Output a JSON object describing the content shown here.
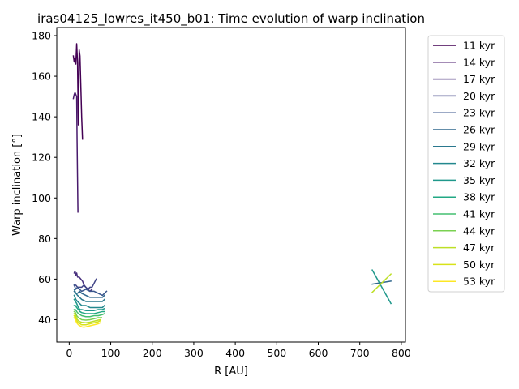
{
  "chart_data": {
    "type": "line",
    "title": "iras04125_lowres_it450_b01: Time evolution of warp inclination",
    "xlabel": "R [AU]",
    "ylabel": "Warp inclination [°]",
    "xlim": [
      -30,
      810
    ],
    "ylim": [
      29,
      184
    ],
    "xticks": [
      0,
      100,
      200,
      300,
      400,
      500,
      600,
      700,
      800
    ],
    "yticks": [
      40,
      60,
      80,
      100,
      120,
      140,
      160,
      180
    ],
    "grid": false,
    "legend_position": "outside-right",
    "series": [
      {
        "name": "11 kyr",
        "color": "#440154",
        "x": [
          10,
          12,
          14,
          16,
          18,
          20,
          22,
          24,
          26,
          28,
          30,
          32
        ],
        "y": [
          170,
          167,
          169,
          166,
          176,
          167,
          136,
          173,
          170,
          155,
          140,
          129
        ]
      },
      {
        "name": "14 kyr",
        "color": "#481a6c",
        "x": [
          10,
          12,
          14,
          16,
          18,
          19,
          20,
          21
        ],
        "y": [
          149,
          151,
          152,
          151,
          150,
          128,
          110,
          93
        ]
      },
      {
        "name": "17 kyr",
        "color": "#472f7d",
        "x": [
          12,
          14,
          16,
          18,
          20,
          24,
          28,
          32,
          36,
          40,
          45,
          50,
          55
        ],
        "y": [
          63,
          64,
          62,
          63,
          61,
          61,
          60,
          59,
          57,
          56,
          55,
          54,
          55
        ]
      },
      {
        "name": "20 kyr",
        "color": "#414487",
        "x": [
          12,
          16,
          20,
          25,
          30,
          35,
          40,
          45,
          50,
          55,
          60,
          65
        ],
        "y": [
          57,
          57,
          56,
          56,
          56,
          57,
          56,
          55,
          56,
          56,
          58,
          60
        ]
      },
      {
        "name": "23 kyr",
        "color": "#39568c",
        "x": [
          12,
          16,
          20,
          25,
          30,
          40,
          50,
          60,
          70,
          80,
          85,
          90
        ],
        "y": [
          57,
          55,
          56,
          55,
          54,
          55,
          54,
          54,
          53,
          52,
          53,
          54
        ]
      },
      {
        "name": "26 kyr",
        "color": "#31688e",
        "x": [
          12,
          16,
          20,
          25,
          30,
          40,
          50,
          60,
          70,
          80,
          85
        ],
        "y": [
          54,
          53,
          53,
          54,
          53,
          52,
          51,
          51,
          51,
          51,
          52
        ]
      },
      {
        "name": "29 kyr",
        "color": "#2a788e",
        "x": [
          12,
          16,
          20,
          25,
          30,
          40,
          50,
          60,
          70,
          80,
          85
        ],
        "y": [
          55,
          53,
          52,
          51,
          50,
          49,
          49,
          49,
          49,
          49,
          50
        ]
      },
      {
        "name": "32 kyr",
        "color": "#23888e",
        "x": [
          12,
          16,
          20,
          25,
          30,
          40,
          50,
          60,
          70,
          80,
          85
        ],
        "y": [
          52,
          50,
          49,
          48,
          47,
          47,
          46,
          46,
          46,
          46,
          47
        ]
      },
      {
        "name": "35 kyr",
        "color": "#1f988b",
        "x": [
          12,
          15,
          18,
          22,
          26,
          30,
          40,
          50,
          60,
          70,
          80,
          85
        ],
        "y": [
          50,
          49,
          48,
          46,
          45,
          45,
          44.5,
          44.5,
          44.5,
          45,
          45,
          45.5
        ]
      },
      {
        "name": "38 kyr",
        "color": "#22a884",
        "x": [
          12,
          15,
          18,
          22,
          26,
          30,
          40,
          50,
          60,
          70,
          80,
          85
        ],
        "y": [
          47,
          47,
          46,
          45,
          44,
          43.5,
          43,
          43,
          43,
          43.5,
          44,
          44
        ]
      },
      {
        "name": "41 kyr",
        "color": "#44bf70",
        "x": [
          12,
          15,
          18,
          22,
          26,
          30,
          40,
          50,
          60,
          70,
          80,
          85
        ],
        "y": [
          45,
          45,
          44,
          43,
          42.5,
          42,
          41.5,
          41.5,
          42,
          42,
          42.5,
          43
        ]
      },
      {
        "name": "44 kyr",
        "color": "#7ad151",
        "x": [
          12,
          15,
          18,
          22,
          26,
          30,
          40,
          50,
          60,
          70,
          78
        ],
        "y": [
          44,
          43.5,
          42,
          41,
          40.5,
          40,
          39.8,
          40,
          40.5,
          41,
          41
        ]
      },
      {
        "name": "47 kyr",
        "color": "#bddf26",
        "x": [
          12,
          15,
          18,
          22,
          26,
          30,
          40,
          50,
          60,
          70,
          75
        ],
        "y": [
          43,
          42.5,
          40.5,
          39.5,
          39,
          38.7,
          38.5,
          38.8,
          39.3,
          39.8,
          40
        ]
      },
      {
        "name": "50 kyr",
        "color": "#d8e219",
        "x": [
          12,
          15,
          18,
          22,
          26,
          30,
          40,
          50,
          60,
          70,
          75
        ],
        "y": [
          42,
          41,
          39.5,
          38.5,
          38,
          37.5,
          37.5,
          38,
          38.5,
          39,
          39.5
        ]
      },
      {
        "name": "53 kyr",
        "color": "#fde725",
        "x": [
          12,
          15,
          18,
          22,
          26,
          30,
          35,
          40,
          50,
          60,
          70,
          75
        ],
        "y": [
          41,
          40,
          38.5,
          37.5,
          37,
          36.5,
          36.3,
          36.5,
          37,
          37.5,
          38,
          38.5
        ]
      },
      {
        "name": "",
        "color": "#31688e",
        "x": [
          730,
          775
        ],
        "y": [
          57.5,
          59
        ]
      },
      {
        "name": "",
        "color": "#1f988b",
        "x": [
          730,
          775
        ],
        "y": [
          64.5,
          48
        ]
      },
      {
        "name": "",
        "color": "#bddf26",
        "x": [
          730,
          775
        ],
        "y": [
          53.5,
          62.5
        ]
      }
    ]
  }
}
